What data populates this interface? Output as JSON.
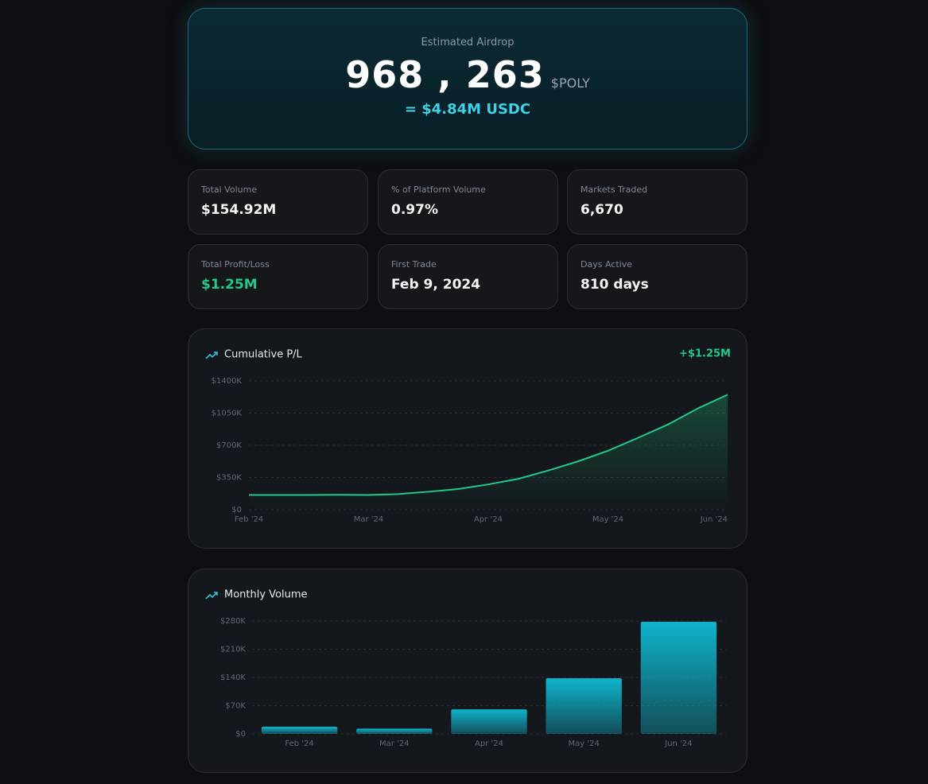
{
  "header": {
    "label": "Estimated Airdrop",
    "amount": "968 , 263",
    "token": "$POLY",
    "usdc": "= $4.84M USDC"
  },
  "stats": [
    {
      "label": "Total Volume",
      "value": "$154.92M"
    },
    {
      "label": "% of Platform Volume",
      "value": "0.97%"
    },
    {
      "label": "Markets Traded",
      "value": "6,670"
    },
    {
      "label": "Total Profit/Loss",
      "value": "$1.25M"
    },
    {
      "label": "First Trade",
      "value": "Feb 9, 2024"
    },
    {
      "label": "Days Active",
      "value": "810 days"
    }
  ],
  "chart_data": [
    {
      "type": "line",
      "title": "Cumulative P/L",
      "annotation": "+$1.25M",
      "categories": [
        "Feb '24",
        null,
        null,
        null,
        "Mar '24",
        null,
        null,
        null,
        "Apr '24",
        null,
        null,
        null,
        "May '24",
        null,
        null,
        null,
        "Jun '24"
      ],
      "values": [
        160000,
        160000,
        160000,
        162000,
        160000,
        170000,
        195000,
        225000,
        275000,
        335000,
        425000,
        525000,
        640000,
        780000,
        925000,
        1100000,
        1250000
      ],
      "color": "#22c98a",
      "ylim": [
        0,
        1400000
      ],
      "yticks": [
        {
          "value": 0,
          "label": "$0"
        },
        {
          "value": 350000,
          "label": "$350K"
        },
        {
          "value": 700000,
          "label": "$700K"
        },
        {
          "value": 1050000,
          "label": "$1050K"
        },
        {
          "value": 1400000,
          "label": "$1400K"
        }
      ],
      "grid": true
    },
    {
      "type": "bar",
      "title": "Monthly Volume",
      "categories": [
        "Feb '24",
        "Mar '24",
        "Apr '24",
        "May '24",
        "Jun '24"
      ],
      "values": [
        18000,
        13000,
        61000,
        138000,
        278000
      ],
      "color": "#0fb4cc",
      "ylim": [
        0,
        280000
      ],
      "yticks": [
        {
          "value": 0,
          "label": "$0"
        },
        {
          "value": 70000,
          "label": "$70K"
        },
        {
          "value": 140000,
          "label": "$140K"
        },
        {
          "value": 210000,
          "label": "$210K"
        },
        {
          "value": 280000,
          "label": "$280K"
        }
      ],
      "grid": true
    }
  ]
}
